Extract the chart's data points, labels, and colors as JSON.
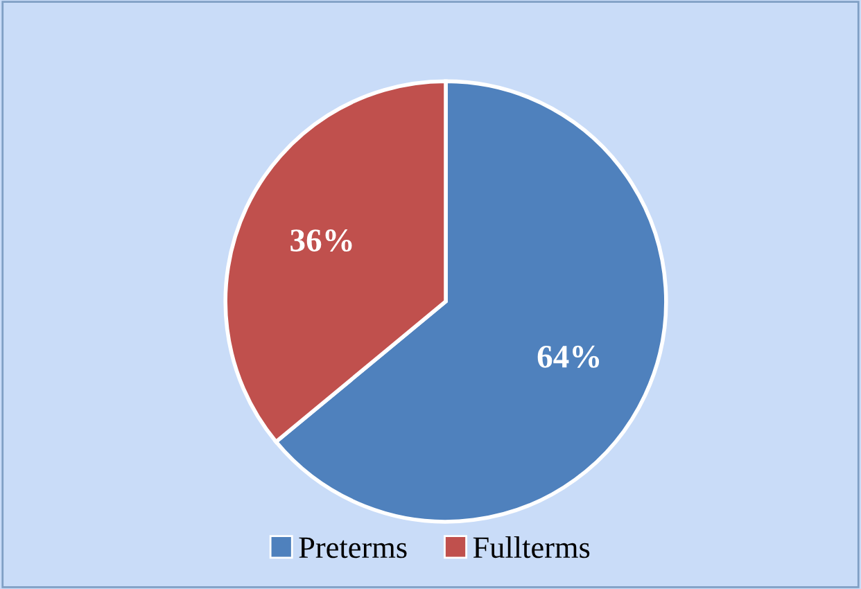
{
  "chart_data": {
    "type": "pie",
    "categories": [
      "Preterms",
      "Fullterms"
    ],
    "values": [
      64,
      36
    ],
    "colors": [
      "#4f81bd",
      "#c0504d"
    ],
    "value_labels": [
      "64%",
      "36%"
    ],
    "legend": "bottom"
  }
}
